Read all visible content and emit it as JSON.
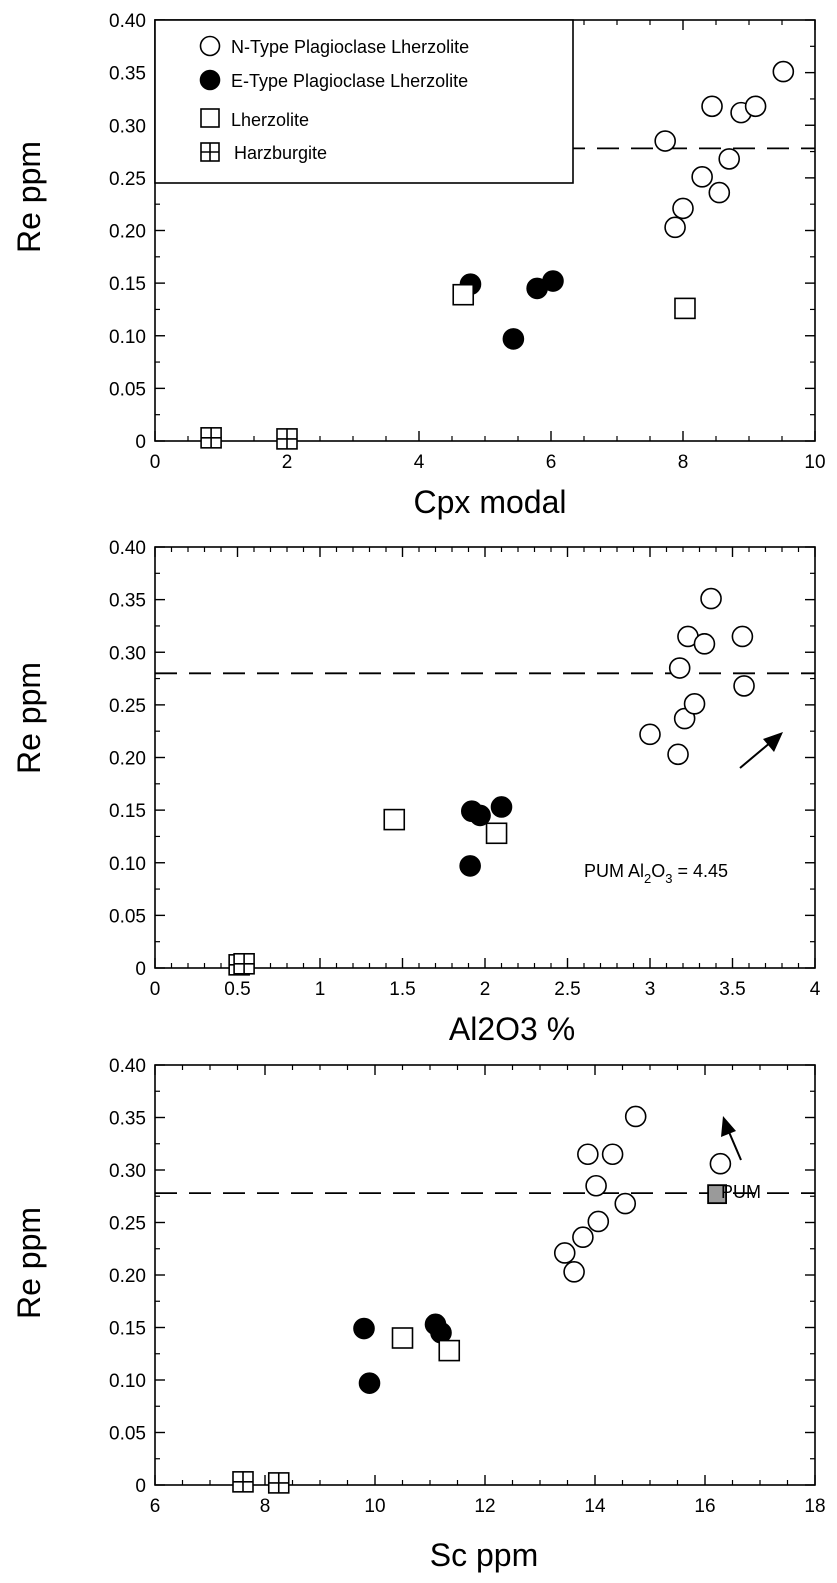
{
  "chart_data": [
    {
      "type": "scatter",
      "xlabel": "Cpx modal",
      "ylabel": "Re ppm",
      "xlim": [
        0,
        10
      ],
      "ylim": [
        0,
        0.4
      ],
      "xticks": [
        "0",
        "2",
        "4",
        "6",
        "8",
        "10"
      ],
      "yticks": [
        "0",
        "0.05",
        "0.10",
        "0.15",
        "0.20",
        "0.25",
        "0.30",
        "0.35",
        "0.40"
      ],
      "reference_line": {
        "y": 0.278,
        "style": "dashed"
      },
      "legend": {
        "position": "top-left",
        "entries": [
          {
            "label": "N-Type Plagioclase Lherzolite",
            "marker": "open-circle"
          },
          {
            "label": "E-Type Plagioclase Lherzolite",
            "marker": "filled-circle"
          },
          {
            "label": "Lherzolite",
            "marker": "open-square"
          },
          {
            "label": "Harzburgite",
            "marker": "crossed-square"
          }
        ]
      },
      "series": [
        {
          "marker": "open-circle",
          "points": [
            [
              7.73,
              0.285
            ],
            [
              7.88,
              0.203
            ],
            [
              8.0,
              0.221
            ],
            [
              8.29,
              0.251
            ],
            [
              8.44,
              0.318
            ],
            [
              8.55,
              0.236
            ],
            [
              8.7,
              0.268
            ],
            [
              8.88,
              0.312
            ],
            [
              9.1,
              0.318
            ],
            [
              9.52,
              0.351
            ]
          ]
        },
        {
          "marker": "filled-circle",
          "points": [
            [
              4.78,
              0.149
            ],
            [
              5.43,
              0.097
            ],
            [
              5.79,
              0.145
            ],
            [
              6.03,
              0.152
            ]
          ]
        },
        {
          "marker": "open-square",
          "points": [
            [
              4.67,
              0.139
            ],
            [
              8.03,
              0.126
            ]
          ]
        },
        {
          "marker": "crossed-square",
          "points": [
            [
              0.85,
              0.003
            ],
            [
              2.0,
              0.002
            ]
          ]
        }
      ]
    },
    {
      "type": "scatter",
      "xlabel": "Al2O3 %",
      "ylabel": "Re ppm",
      "xlim": [
        0,
        4
      ],
      "ylim": [
        0,
        0.4
      ],
      "xticks": [
        "0",
        "0.5",
        "1",
        "1.5",
        "2",
        "2.5",
        "3",
        "3.5",
        "4"
      ],
      "yticks": [
        "0",
        "0.05",
        "0.10",
        "0.15",
        "0.20",
        "0.25",
        "0.30",
        "0.35",
        "0.40"
      ],
      "reference_line": {
        "y": 0.28,
        "style": "dashed"
      },
      "annotations": [
        {
          "text_prefix": "PUM Al",
          "sub1": "2",
          "mid": "O",
          "sub2": "3",
          "suffix": " = 4.45",
          "arrow_to": "right"
        }
      ],
      "series": [
        {
          "marker": "open-circle",
          "points": [
            [
              3.0,
              0.222
            ],
            [
              3.17,
              0.203
            ],
            [
              3.18,
              0.285
            ],
            [
              3.21,
              0.237
            ],
            [
              3.23,
              0.315
            ],
            [
              3.27,
              0.251
            ],
            [
              3.33,
              0.308
            ],
            [
              3.37,
              0.351
            ],
            [
              3.56,
              0.315
            ],
            [
              3.57,
              0.268
            ]
          ]
        },
        {
          "marker": "filled-circle",
          "points": [
            [
              1.91,
              0.097
            ],
            [
              1.92,
              0.149
            ],
            [
              1.97,
              0.145
            ],
            [
              2.1,
              0.153
            ]
          ]
        },
        {
          "marker": "open-square",
          "points": [
            [
              1.45,
              0.141
            ],
            [
              2.07,
              0.128
            ]
          ]
        },
        {
          "marker": "crossed-square",
          "points": [
            [
              0.51,
              0.003
            ],
            [
              0.54,
              0.004
            ]
          ]
        }
      ]
    },
    {
      "type": "scatter",
      "xlabel": "Sc ppm",
      "ylabel": "Re ppm",
      "xlim": [
        6,
        18
      ],
      "ylim": [
        0,
        0.4
      ],
      "xticks": [
        "6",
        "8",
        "10",
        "12",
        "14",
        "16",
        "18"
      ],
      "yticks": [
        "0",
        "0.05",
        "0.10",
        "0.15",
        "0.20",
        "0.25",
        "0.30",
        "0.35",
        "0.40"
      ],
      "reference_line": {
        "y": 0.278,
        "style": "dashed"
      },
      "annotations": [
        {
          "text": "PUM",
          "arrow_to": "PUM point"
        }
      ],
      "series": [
        {
          "marker": "open-circle",
          "points": [
            [
              13.45,
              0.221
            ],
            [
              13.62,
              0.203
            ],
            [
              13.78,
              0.236
            ],
            [
              13.87,
              0.315
            ],
            [
              14.02,
              0.285
            ],
            [
              14.06,
              0.251
            ],
            [
              14.32,
              0.315
            ],
            [
              14.55,
              0.268
            ],
            [
              14.74,
              0.351
            ],
            [
              16.28,
              0.306
            ]
          ]
        },
        {
          "marker": "filled-circle",
          "points": [
            [
              9.8,
              0.149
            ],
            [
              9.9,
              0.097
            ],
            [
              11.1,
              0.153
            ],
            [
              11.2,
              0.145
            ]
          ]
        },
        {
          "marker": "open-square",
          "points": [
            [
              10.5,
              0.14
            ],
            [
              11.35,
              0.128
            ]
          ]
        },
        {
          "marker": "crossed-square",
          "points": [
            [
              7.6,
              0.003
            ],
            [
              8.25,
              0.002
            ]
          ]
        },
        {
          "marker": "shaded-square",
          "name": "PUM",
          "points": [
            [
              16.22,
              0.277
            ]
          ]
        }
      ]
    }
  ]
}
